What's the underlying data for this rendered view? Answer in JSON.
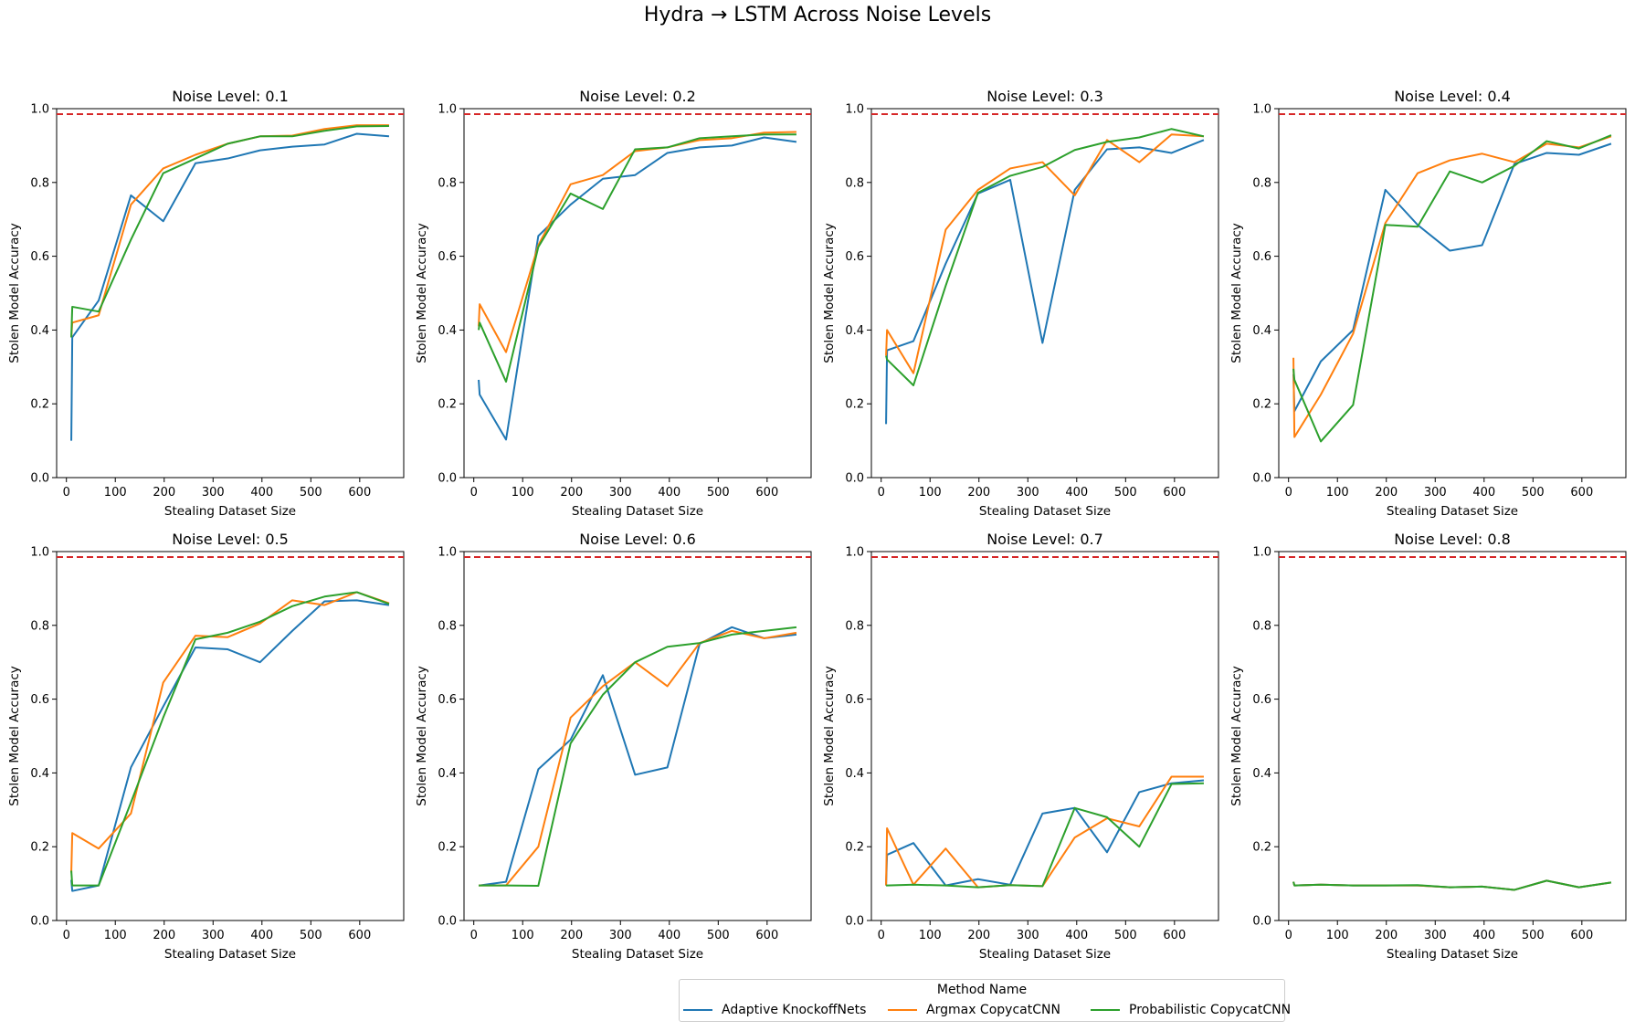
{
  "figure": {
    "title": "Hydra → LSTM Across Noise Levels",
    "reference_color": "#d62728"
  },
  "legend": {
    "title": "Method Name",
    "items": [
      {
        "label": "Adaptive KnockoffNets",
        "color": "#1f77b4"
      },
      {
        "label": "Argmax CopycatCNN",
        "color": "#ff7f0e"
      },
      {
        "label": "Probabilistic CopycatCNN",
        "color": "#2ca02c"
      }
    ]
  },
  "chart_data": [
    {
      "type": "line",
      "title": "Noise Level: 0.1",
      "xlabel": "Stealing Dataset Size",
      "ylabel": "Stolen Model Accuracy",
      "xlim": [
        -20,
        690
      ],
      "ylim": [
        0,
        1.0
      ],
      "xticks": [
        0,
        100,
        200,
        300,
        400,
        500,
        600
      ],
      "yticks": [
        0.0,
        0.2,
        0.4,
        0.6,
        0.8,
        1.0
      ],
      "reference_line": 0.985,
      "x": [
        10,
        12,
        66,
        132,
        198,
        264,
        330,
        396,
        462,
        528,
        594,
        660
      ],
      "series": [
        {
          "name": "Adaptive KnockoffNets",
          "values": [
            0.1,
            0.38,
            0.48,
            0.765,
            0.695,
            0.852,
            0.865,
            0.887,
            0.897,
            0.903,
            0.932,
            0.925
          ]
        },
        {
          "name": "Argmax CopycatCNN",
          "values": [
            0.38,
            0.42,
            0.44,
            0.74,
            0.838,
            0.875,
            0.905,
            0.925,
            0.927,
            0.945,
            0.955,
            0.955
          ]
        },
        {
          "name": "Probabilistic CopycatCNN",
          "values": [
            0.38,
            0.463,
            0.45,
            0.645,
            0.825,
            0.865,
            0.905,
            0.925,
            0.925,
            0.94,
            0.952,
            0.953
          ]
        }
      ]
    },
    {
      "type": "line",
      "title": "Noise Level: 0.2",
      "xlabel": "Stealing Dataset Size",
      "ylabel": "Stolen Model Accuracy",
      "xlim": [
        -20,
        690
      ],
      "ylim": [
        0,
        1.0
      ],
      "xticks": [
        0,
        100,
        200,
        300,
        400,
        500,
        600
      ],
      "yticks": [
        0.0,
        0.2,
        0.4,
        0.6,
        0.8,
        1.0
      ],
      "reference_line": 0.985,
      "x": [
        10,
        12,
        66,
        132,
        198,
        264,
        330,
        396,
        462,
        528,
        594,
        660
      ],
      "series": [
        {
          "name": "Adaptive KnockoffNets",
          "values": [
            0.265,
            0.225,
            0.103,
            0.655,
            0.74,
            0.81,
            0.82,
            0.88,
            0.895,
            0.9,
            0.922,
            0.91
          ]
        },
        {
          "name": "Argmax CopycatCNN",
          "values": [
            0.41,
            0.47,
            0.34,
            0.63,
            0.795,
            0.82,
            0.885,
            0.895,
            0.915,
            0.92,
            0.935,
            0.937
          ]
        },
        {
          "name": "Probabilistic CopycatCNN",
          "values": [
            0.4,
            0.42,
            0.26,
            0.625,
            0.77,
            0.728,
            0.89,
            0.895,
            0.92,
            0.925,
            0.93,
            0.93
          ]
        }
      ]
    },
    {
      "type": "line",
      "title": "Noise Level: 0.3",
      "xlabel": "Stealing Dataset Size",
      "ylabel": "Stolen Model Accuracy",
      "xlim": [
        -20,
        690
      ],
      "ylim": [
        0,
        1.0
      ],
      "xticks": [
        0,
        100,
        200,
        300,
        400,
        500,
        600
      ],
      "yticks": [
        0.0,
        0.2,
        0.4,
        0.6,
        0.8,
        1.0
      ],
      "reference_line": 0.985,
      "x": [
        10,
        12,
        66,
        132,
        198,
        264,
        330,
        396,
        462,
        528,
        594,
        660
      ],
      "series": [
        {
          "name": "Adaptive KnockoffNets",
          "values": [
            0.145,
            0.345,
            0.37,
            0.58,
            0.77,
            0.807,
            0.365,
            0.78,
            0.89,
            0.895,
            0.88,
            0.915
          ]
        },
        {
          "name": "Argmax CopycatCNN",
          "values": [
            0.33,
            0.4,
            0.283,
            0.672,
            0.78,
            0.838,
            0.855,
            0.765,
            0.915,
            0.855,
            0.93,
            0.925
          ]
        },
        {
          "name": "Probabilistic CopycatCNN",
          "values": [
            0.33,
            0.32,
            0.25,
            0.52,
            0.772,
            0.818,
            0.842,
            0.888,
            0.91,
            0.922,
            0.945,
            0.925
          ]
        }
      ]
    },
    {
      "type": "line",
      "title": "Noise Level: 0.4",
      "xlabel": "Stealing Dataset Size",
      "ylabel": "Stolen Model Accuracy",
      "xlim": [
        -20,
        690
      ],
      "ylim": [
        0,
        1.0
      ],
      "xticks": [
        0,
        100,
        200,
        300,
        400,
        500,
        600
      ],
      "yticks": [
        0.0,
        0.2,
        0.4,
        0.6,
        0.8,
        1.0
      ],
      "reference_line": 0.985,
      "x": [
        10,
        12,
        66,
        132,
        198,
        264,
        330,
        396,
        462,
        528,
        594,
        660
      ],
      "series": [
        {
          "name": "Adaptive KnockoffNets",
          "values": [
            0.28,
            0.18,
            0.315,
            0.4,
            0.78,
            0.685,
            0.615,
            0.63,
            0.85,
            0.88,
            0.875,
            0.905
          ]
        },
        {
          "name": "Argmax CopycatCNN",
          "values": [
            0.325,
            0.11,
            0.225,
            0.39,
            0.69,
            0.825,
            0.86,
            0.878,
            0.855,
            0.905,
            0.895,
            0.925
          ]
        },
        {
          "name": "Probabilistic CopycatCNN",
          "values": [
            0.295,
            0.265,
            0.098,
            0.197,
            0.685,
            0.68,
            0.83,
            0.8,
            0.845,
            0.912,
            0.892,
            0.928
          ]
        }
      ]
    },
    {
      "type": "line",
      "title": "Noise Level: 0.5",
      "xlabel": "Stealing Dataset Size",
      "ylabel": "Stolen Model Accuracy",
      "xlim": [
        -20,
        690
      ],
      "ylim": [
        0,
        1.0
      ],
      "xticks": [
        0,
        100,
        200,
        300,
        400,
        500,
        600
      ],
      "yticks": [
        0.0,
        0.2,
        0.4,
        0.6,
        0.8,
        1.0
      ],
      "reference_line": 0.985,
      "x": [
        10,
        12,
        66,
        132,
        198,
        264,
        330,
        396,
        462,
        528,
        594,
        660
      ],
      "series": [
        {
          "name": "Adaptive KnockoffNets",
          "values": [
            0.11,
            0.08,
            0.095,
            0.415,
            0.58,
            0.74,
            0.735,
            0.7,
            0.785,
            0.865,
            0.868,
            0.855
          ]
        },
        {
          "name": "Argmax CopycatCNN",
          "values": [
            0.13,
            0.237,
            0.195,
            0.29,
            0.645,
            0.772,
            0.768,
            0.805,
            0.868,
            0.855,
            0.89,
            0.86
          ]
        },
        {
          "name": "Probabilistic CopycatCNN",
          "values": [
            0.135,
            0.095,
            0.095,
            0.32,
            0.55,
            0.762,
            0.78,
            0.81,
            0.852,
            0.878,
            0.89,
            0.858
          ]
        }
      ]
    },
    {
      "type": "line",
      "title": "Noise Level: 0.6",
      "xlabel": "Stealing Dataset Size",
      "ylabel": "Stolen Model Accuracy",
      "xlim": [
        -20,
        690
      ],
      "ylim": [
        0,
        1.0
      ],
      "xticks": [
        0,
        100,
        200,
        300,
        400,
        500,
        600
      ],
      "yticks": [
        0.0,
        0.2,
        0.4,
        0.6,
        0.8,
        1.0
      ],
      "reference_line": 0.985,
      "x": [
        10,
        12,
        66,
        132,
        198,
        264,
        330,
        396,
        462,
        528,
        594,
        660
      ],
      "series": [
        {
          "name": "Adaptive KnockoffNets",
          "values": [
            0.095,
            0.095,
            0.105,
            0.41,
            0.49,
            0.665,
            0.395,
            0.415,
            0.75,
            0.795,
            0.765,
            0.775
          ]
        },
        {
          "name": "Argmax CopycatCNN",
          "values": [
            0.095,
            0.095,
            0.095,
            0.2,
            0.55,
            0.635,
            0.7,
            0.635,
            0.752,
            0.785,
            0.765,
            0.78
          ]
        },
        {
          "name": "Probabilistic CopycatCNN",
          "values": [
            0.095,
            0.095,
            0.095,
            0.094,
            0.48,
            0.612,
            0.7,
            0.742,
            0.752,
            0.775,
            0.785,
            0.795
          ]
        }
      ]
    },
    {
      "type": "line",
      "title": "Noise Level: 0.7",
      "xlabel": "Stealing Dataset Size",
      "ylabel": "Stolen Model Accuracy",
      "xlim": [
        -20,
        690
      ],
      "ylim": [
        0,
        1.0
      ],
      "xticks": [
        0,
        100,
        200,
        300,
        400,
        500,
        600
      ],
      "yticks": [
        0.0,
        0.2,
        0.4,
        0.6,
        0.8,
        1.0
      ],
      "reference_line": 0.985,
      "x": [
        10,
        12,
        66,
        132,
        198,
        264,
        330,
        396,
        462,
        528,
        594,
        660
      ],
      "series": [
        {
          "name": "Adaptive KnockoffNets",
          "values": [
            0.095,
            0.178,
            0.21,
            0.095,
            0.112,
            0.097,
            0.29,
            0.305,
            0.185,
            0.348,
            0.372,
            0.38
          ]
        },
        {
          "name": "Argmax CopycatCNN",
          "values": [
            0.095,
            0.25,
            0.097,
            0.195,
            0.09,
            0.096,
            0.093,
            0.225,
            0.277,
            0.255,
            0.39,
            0.39
          ]
        },
        {
          "name": "Probabilistic CopycatCNN",
          "values": [
            0.095,
            0.095,
            0.097,
            0.095,
            0.09,
            0.096,
            0.093,
            0.305,
            0.28,
            0.2,
            0.37,
            0.372
          ]
        }
      ]
    },
    {
      "type": "line",
      "title": "Noise Level: 0.8",
      "xlabel": "Stealing Dataset Size",
      "ylabel": "Stolen Model Accuracy",
      "xlim": [
        -20,
        690
      ],
      "ylim": [
        0,
        1.0
      ],
      "xticks": [
        0,
        100,
        200,
        300,
        400,
        500,
        600
      ],
      "yticks": [
        0.0,
        0.2,
        0.4,
        0.6,
        0.8,
        1.0
      ],
      "reference_line": 0.985,
      "x": [
        10,
        12,
        66,
        132,
        198,
        264,
        330,
        396,
        462,
        528,
        594,
        660
      ],
      "series": [
        {
          "name": "Adaptive KnockoffNets",
          "values": [
            0.105,
            0.095,
            0.097,
            0.095,
            0.095,
            0.095,
            0.09,
            0.092,
            0.083,
            0.108,
            0.09,
            0.103
          ]
        },
        {
          "name": "Argmax CopycatCNN",
          "values": [
            0.105,
            0.095,
            0.097,
            0.095,
            0.095,
            0.095,
            0.09,
            0.092,
            0.083,
            0.108,
            0.09,
            0.103
          ]
        },
        {
          "name": "Probabilistic CopycatCNN",
          "values": [
            0.105,
            0.095,
            0.097,
            0.095,
            0.095,
            0.096,
            0.09,
            0.092,
            0.083,
            0.108,
            0.09,
            0.103
          ]
        }
      ]
    }
  ]
}
